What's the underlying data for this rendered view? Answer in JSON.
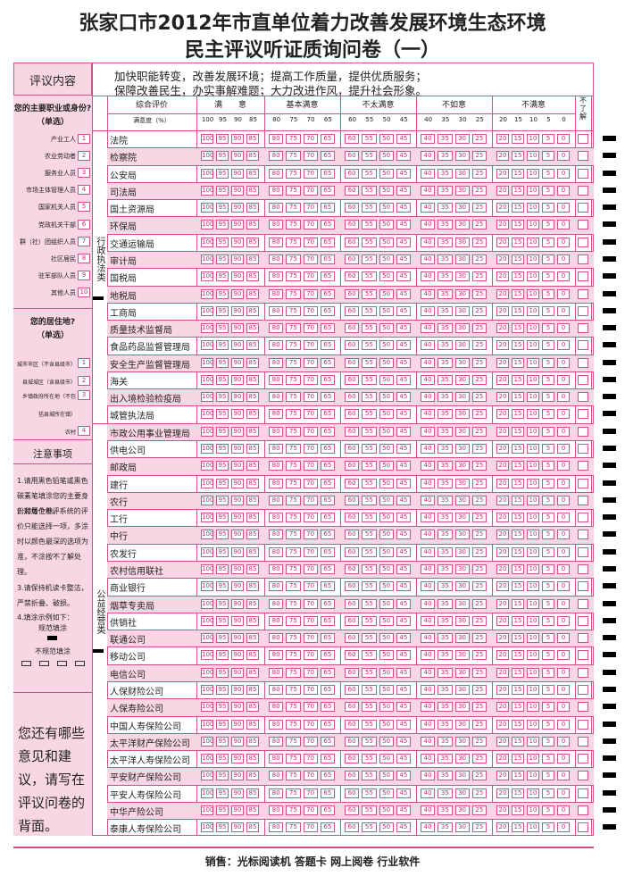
{
  "title": [
    "张家口市2012年市直单位着力改善发展环境生态环境",
    "民主评议听证质询问卷（一）"
  ],
  "intro": {
    "label": "评议内容",
    "lines": [
      "加快职能转变，改善发展环境；提高工作质量，提供优质服务；",
      "保障改善民生，办实事解难题；大力改进作风，提升社会形象。"
    ]
  },
  "identity": {
    "question": "您的主要职业或身份?",
    "note": "（单选）",
    "options": [
      {
        "label": "产业工人",
        "code": 1
      },
      {
        "label": "农业劳动者",
        "code": 2
      },
      {
        "label": "服务业人员",
        "code": 3
      },
      {
        "label": "市场主体管理人员",
        "code": 4
      },
      {
        "label": "国家机关人员",
        "code": 5
      },
      {
        "label": "党政机关干部",
        "code": 6
      },
      {
        "label": "群（社）团组织人员",
        "code": 7
      },
      {
        "label": "社区居民",
        "code": 8
      },
      {
        "label": "驻军部队人员",
        "code": 9
      },
      {
        "label": "其他人员",
        "code": 10
      }
    ]
  },
  "residence": {
    "question": "您的居住地?",
    "note": "（单选）",
    "options": [
      {
        "label": "城市市区（不含县级市）",
        "code": 1
      },
      {
        "label": "县城城区（含县级市）",
        "code": 2
      },
      {
        "label": "乡镇政府所在地（不包",
        "code": 3
      },
      {
        "label": "括县城所在镇）"
      },
      {
        "label": "农村",
        "code": 4
      }
    ]
  },
  "notes": {
    "title": "注意事项",
    "items": [
      "1.请用黑色铅笔或黑色碳素笔填涂您的主要身份和居住地。",
      "2.对每个参评系统的评价只能选择一项，多涂时以颜色最深的选项为准，不涂按不了解处理。",
      "3.请保持机读卡整洁，严禁折叠、破损。",
      "4.填涂示例如下："
    ],
    "sample_good": "规范填涂",
    "sample_bad": "不规范填涂"
  },
  "suggestion": "您还有哪些意见和建议，请写在评议问卷的背面。",
  "table": {
    "header": "综合评价",
    "rating_header": "满意度（%）",
    "unknown": "不了解",
    "scale": [
      {
        "label": "满　　意",
        "scores": [
          100,
          95,
          90,
          85
        ]
      },
      {
        "label": "基本满意",
        "scores": [
          80,
          75,
          70,
          65
        ]
      },
      {
        "label": "不太满意",
        "scores": [
          60,
          55,
          50,
          45
        ]
      },
      {
        "label": "不如意",
        "scores": [
          40,
          35,
          30,
          25
        ]
      },
      {
        "label": "不满意",
        "scores": [
          20,
          15,
          10,
          5,
          0
        ]
      }
    ],
    "groups": [
      {
        "label": "行政执法类",
        "rows": [
          "法院",
          "检察院",
          "公安局",
          "司法局",
          "国土资源局",
          "环保局",
          "交通运输局",
          "审计局",
          "国税局",
          "地税局",
          "工商局",
          "质量技术监督局",
          "食品药品监督管理局",
          "安全生产监督管理局",
          "海关",
          "出入境检验检疫局",
          "城管执法局"
        ]
      },
      {
        "label": "公益经营类",
        "rows": [
          "市政公用事业管理局",
          "供电公司",
          "邮政局",
          "建行",
          "农行",
          "工行",
          "中行",
          "农发行",
          "农村信用联社",
          "商业银行",
          "烟草专卖局",
          "供销社",
          "联通公司",
          "移动公司",
          "电信公司",
          "人保财险公司",
          "人保寿险公司",
          "中国人寿保险公司",
          "太平洋财产保险公司",
          "太平洋人寿保险公司",
          "平安财产保险公司",
          "平安人寿保险公司",
          "中华产险公司",
          "泰康人寿保险公司"
        ]
      }
    ]
  },
  "footer": "销售：光标阅读机  答题卡  网上阅卷  行业软件"
}
